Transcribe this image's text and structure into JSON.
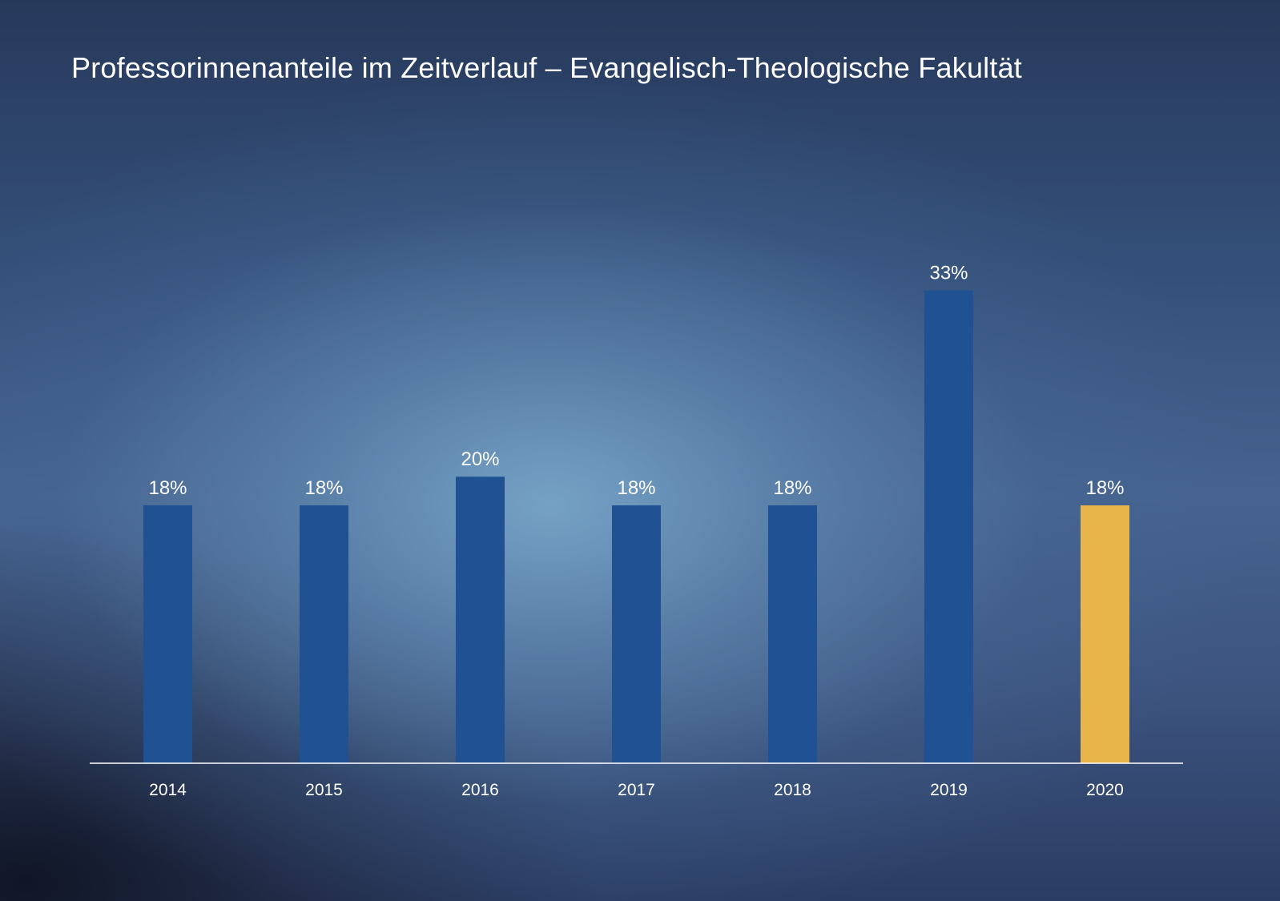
{
  "chart_data": {
    "type": "bar",
    "title": "Professorinnenanteile im Zeitverlauf – Evangelisch-Theologische Fakultät",
    "categories": [
      "2014",
      "2015",
      "2016",
      "2017",
      "2018",
      "2019",
      "2020"
    ],
    "values": [
      18,
      18,
      20,
      18,
      18,
      33,
      18
    ],
    "data_labels": [
      "18%",
      "18%",
      "20%",
      "18%",
      "18%",
      "33%",
      "18%"
    ],
    "highlight_index": 6,
    "unit": "%",
    "xlabel": "",
    "ylabel": "",
    "ylim": [
      0,
      100
    ],
    "grid": false,
    "colors": {
      "bar": "#1f5193",
      "highlight": "#e8b54b",
      "axis": "#ffffff",
      "text": "#ffffff"
    }
  }
}
